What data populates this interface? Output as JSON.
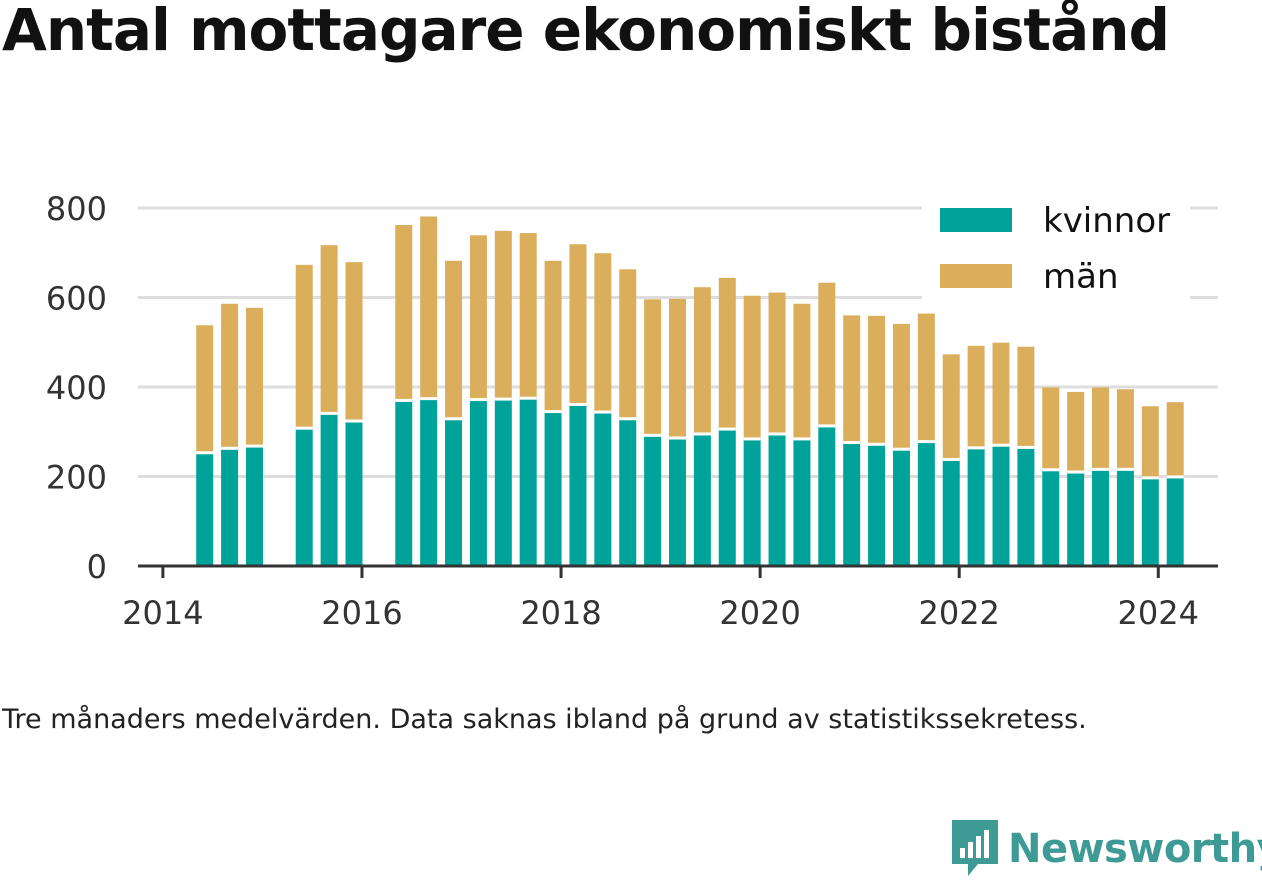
{
  "title": "Antal mottagare ekonomiskt bistånd",
  "footnote": "Tre månaders medelvärden. Data saknas ibland på grund av statistikssekretess.",
  "brand": "Newsworthy",
  "colors": {
    "kvinnor": "#00a39a",
    "man": "#dbae5b",
    "grid": "#dddddd",
    "axis": "#333333",
    "brand": "#3e9a95"
  },
  "chart_data": {
    "type": "bar",
    "stacked": true,
    "x_unit": "year (quarterly bars)",
    "x": [
      2014.42,
      2014.67,
      2014.92,
      2015.42,
      2015.67,
      2015.92,
      2016.42,
      2016.67,
      2016.92,
      2017.17,
      2017.42,
      2017.67,
      2017.92,
      2018.17,
      2018.42,
      2018.67,
      2018.92,
      2019.17,
      2019.42,
      2019.67,
      2019.92,
      2020.17,
      2020.42,
      2020.67,
      2020.92,
      2021.17,
      2021.42,
      2021.67,
      2021.92,
      2022.17,
      2022.42,
      2022.67,
      2022.92,
      2023.17,
      2023.42,
      2023.67,
      2023.92,
      2024.17
    ],
    "series": [
      {
        "name": "kvinnor",
        "values": [
          253,
          263,
          268,
          308,
          341,
          324,
          370,
          374,
          329,
          372,
          373,
          375,
          345,
          361,
          344,
          329,
          292,
          286,
          295,
          306,
          284,
          295,
          284,
          313,
          276,
          272,
          261,
          278,
          238,
          264,
          270,
          265,
          215,
          210,
          216,
          216,
          197,
          199
        ]
      },
      {
        "name": "män",
        "values": [
          285,
          323,
          309,
          365,
          376,
          355,
          392,
          407,
          353,
          367,
          376,
          369,
          337,
          358,
          355,
          334,
          304,
          311,
          328,
          338,
          320,
          316,
          302,
          320,
          284,
          287,
          280,
          286,
          235,
          228,
          229,
          225,
          184,
          179,
          183,
          179,
          160,
          167
        ]
      }
    ],
    "title": "Antal mottagare ekonomiskt bistånd",
    "xlabel": "",
    "ylabel": "",
    "xlim": [
      2013.75,
      2024.6
    ],
    "ylim": [
      0,
      800
    ],
    "yticks": [
      "0",
      "200",
      "400",
      "600",
      "800"
    ],
    "xticks": [
      "2014",
      "2016",
      "2018",
      "2020",
      "2022",
      "2024"
    ],
    "legend": [
      "kvinnor",
      "män"
    ],
    "legend_position": "top-right",
    "grid": true
  }
}
